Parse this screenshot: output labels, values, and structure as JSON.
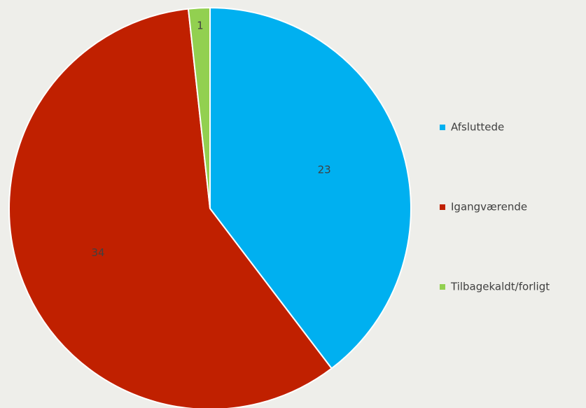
{
  "chart_data": {
    "type": "pie",
    "categories": [
      "Afsluttede",
      "Igangværende",
      "Tilbagekaldt/forligt"
    ],
    "values": [
      23,
      34,
      1
    ],
    "colors": [
      "#00b0f0",
      "#c02000",
      "#92d050"
    ],
    "legend": "right"
  }
}
